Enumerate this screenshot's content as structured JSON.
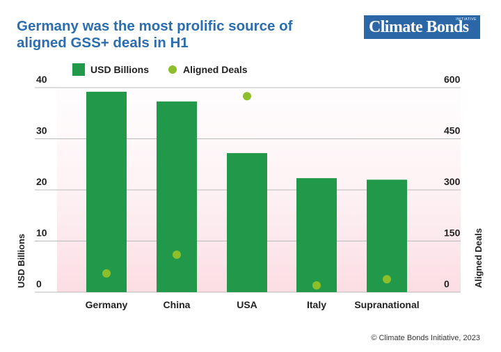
{
  "header": {
    "title": "Germany was the most prolific source of aligned GSS+ deals in H1",
    "logo_text": "Climate Bonds",
    "logo_small": "INITIATIVE"
  },
  "footer": {
    "copyright": "© Climate Bonds Initiative, 2023"
  },
  "colors": {
    "bar": "#22994a",
    "dot": "#8dbf2a",
    "title": "#2a6db0",
    "logo_bg": "#2b67a6"
  },
  "chart_data": {
    "type": "bar",
    "categories": [
      "Germany",
      "China",
      "USA",
      "Italy",
      "Supranational"
    ],
    "series": [
      {
        "name": "USD Billions",
        "type": "bar",
        "axis": "left",
        "values": [
          39.2,
          37.3,
          27.2,
          22.3,
          22.0
        ]
      },
      {
        "name": "Aligned Deals",
        "type": "scatter",
        "axis": "right",
        "values": [
          55,
          110,
          575,
          20,
          38
        ]
      }
    ],
    "ylabel": "USD Billions",
    "y2label": "Aligned Deals",
    "ylim": [
      0,
      40
    ],
    "y2lim": [
      0,
      600
    ],
    "yticks": [
      "0",
      "10",
      "20",
      "30",
      "40"
    ],
    "y2ticks": [
      "0",
      "150",
      "300",
      "450",
      "600"
    ],
    "grid": true,
    "legend": "top-left"
  }
}
